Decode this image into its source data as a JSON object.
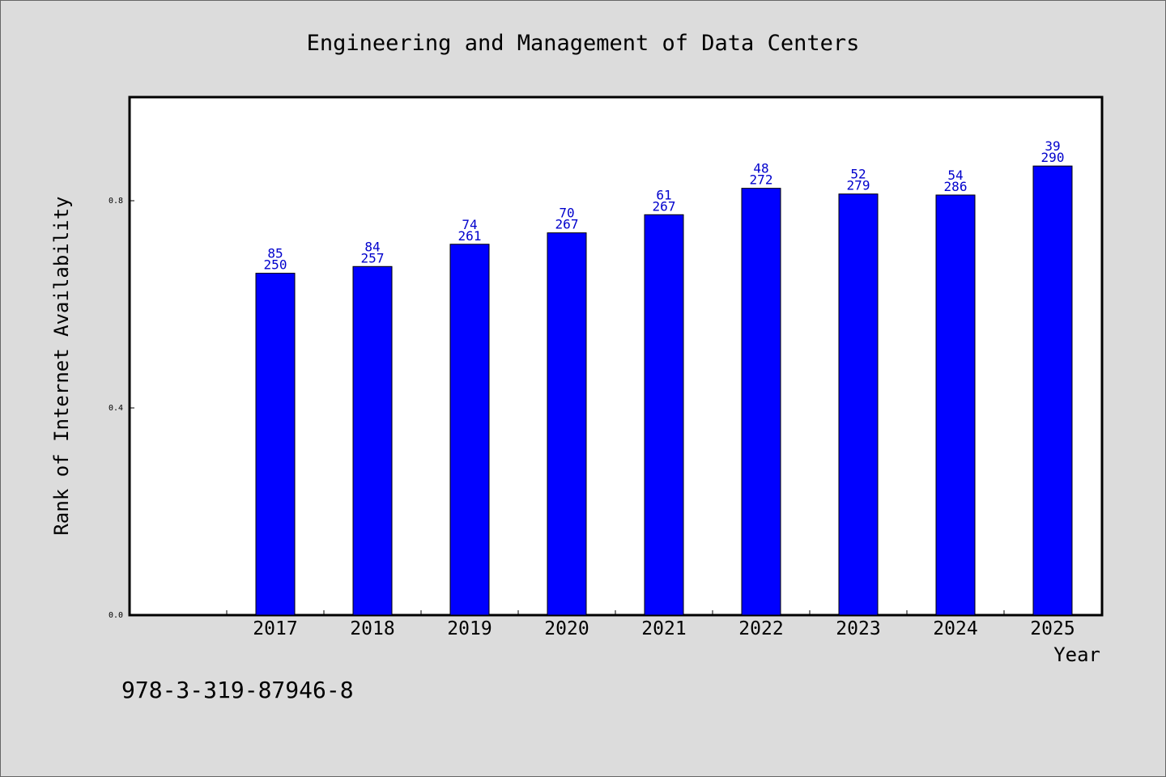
{
  "chart_data": {
    "type": "bar",
    "title": "Engineering and Management of Data Centers",
    "xlabel": "Year",
    "ylabel": "Rank of Internet Availability",
    "categories": [
      "2017",
      "2018",
      "2019",
      "2020",
      "2021",
      "2022",
      "2023",
      "2024",
      "2025"
    ],
    "values": [
      0.66,
      0.673,
      0.716,
      0.738,
      0.773,
      0.824,
      0.813,
      0.811,
      0.867
    ],
    "labels_top": [
      "85",
      "84",
      "74",
      "70",
      "61",
      "48",
      "52",
      "54",
      "39"
    ],
    "labels_bottom": [
      "250",
      "257",
      "261",
      "267",
      "267",
      "272",
      "279",
      "286",
      "290"
    ],
    "ylim": [
      0,
      1.0
    ],
    "yticks": [
      0.0,
      0.4,
      0.8
    ],
    "ytick_labels": [
      "0.0",
      "0.4",
      "0.8"
    ],
    "grid": false,
    "bar_color": "#0000ff",
    "label_color": "#0000cc",
    "background_color": "#dcdcdc",
    "plot_background_color": "#ffffff"
  },
  "footer": {
    "isbn": "978-3-319-87946-8"
  }
}
